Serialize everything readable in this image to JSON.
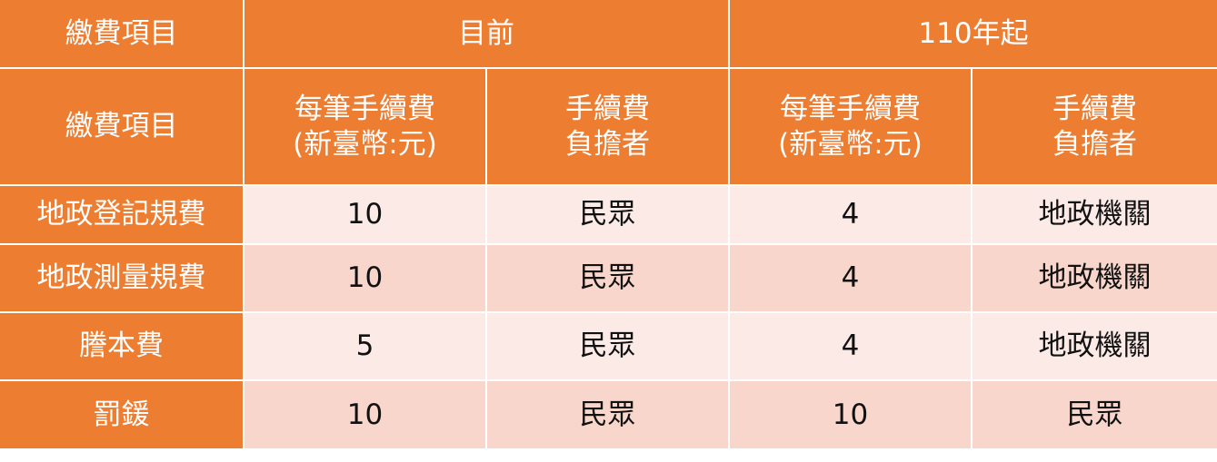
{
  "header_top": {
    "item": "繳費項目",
    "current": "目前",
    "from_110": "110年起"
  },
  "header_sub": {
    "item": "繳費項目",
    "fee_line1": "每筆手續費",
    "fee_line2": "(新臺幣:元)",
    "payer_line1": "手續費",
    "payer_line2": "負擔者"
  },
  "rows": [
    {
      "item": "地政登記規費",
      "cur_fee": "10",
      "cur_payer": "民眾",
      "new_fee": "4",
      "new_payer": "地政機關"
    },
    {
      "item": "地政測量規費",
      "cur_fee": "10",
      "cur_payer": "民眾",
      "new_fee": "4",
      "new_payer": "地政機關"
    },
    {
      "item": "謄本費",
      "cur_fee": "5",
      "cur_payer": "民眾",
      "new_fee": "4",
      "new_payer": "地政機關"
    },
    {
      "item": "罰鍰",
      "cur_fee": "10",
      "cur_payer": "民眾",
      "new_fee": "10",
      "new_payer": "民眾"
    }
  ],
  "colors": {
    "header": "#ED7D31",
    "row_light": "#FBEAE6",
    "row_dark": "#F8D6CC"
  }
}
